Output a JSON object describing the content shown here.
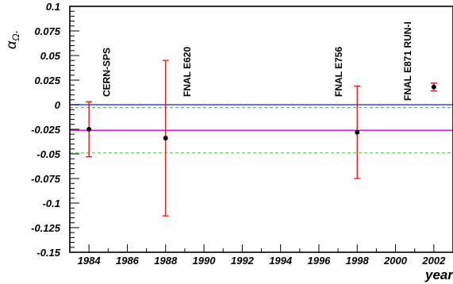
{
  "chart_data": {
    "type": "scatter",
    "title": "",
    "xlabel": "year",
    "ylabel": "α",
    "ylabel_subscript": "Ω-",
    "xlim": [
      1983,
      2003
    ],
    "ylim": [
      -0.15,
      0.1
    ],
    "x_ticks": [
      "1984",
      "1986",
      "1988",
      "1990",
      "1992",
      "1994",
      "1996",
      "1998",
      "2000",
      "2002"
    ],
    "y_ticks": [
      "0.1",
      "0.075",
      "0.05",
      "0.025",
      "0",
      "-0.025",
      "-0.05",
      "-0.075",
      "-0.1",
      "-0.125",
      "-0.15"
    ],
    "points": [
      {
        "label": "CERN-SPS",
        "x": 1984,
        "y": -0.025,
        "err": 0.028
      },
      {
        "label": "FNAL E620",
        "x": 1988,
        "y": -0.034,
        "err": 0.079
      },
      {
        "label": "FNAL E756",
        "x": 1998,
        "y": -0.028,
        "err": 0.047
      },
      {
        "label": "FNAL E871 RUN-I",
        "x": 2002,
        "y": 0.018,
        "err": 0.004
      }
    ],
    "reference_lines": [
      {
        "y": 0.0,
        "color": "#2b4fd6",
        "style": "solid"
      },
      {
        "y": -0.003,
        "color": "#00a6a6",
        "style": "dashed"
      },
      {
        "y": -0.026,
        "color": "#d21fd2",
        "style": "solid"
      },
      {
        "y": -0.049,
        "color": "#38c838",
        "style": "dashed"
      }
    ],
    "colors": {
      "error_bar": "#e01010",
      "point": "#000000",
      "frame": "#000000"
    }
  }
}
